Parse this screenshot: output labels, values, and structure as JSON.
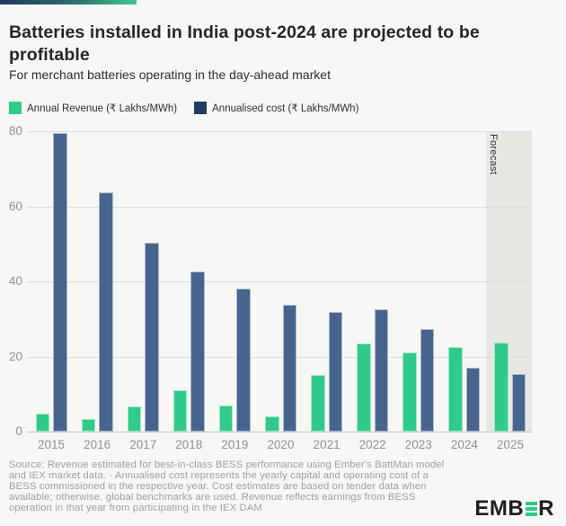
{
  "header": {
    "title": "Batteries installed in India post-2024 are projected to be profitable",
    "subtitle": "For merchant batteries operating in the day-ahead market"
  },
  "legend": [
    {
      "label": "Annual Revenue (₹ Lakhs/MWh)",
      "color": "#30cb8a"
    },
    {
      "label": "Annualised cost (₹ Lakhs/MWh)",
      "color": "#1f3c64"
    }
  ],
  "chart_data": {
    "type": "bar",
    "title": "Batteries installed in India post-2024 are projected to be profitable",
    "subtitle": "For merchant batteries operating in the day-ahead market",
    "categories": [
      "2015",
      "2016",
      "2017",
      "2018",
      "2019",
      "2020",
      "2021",
      "2022",
      "2023",
      "2024",
      "2025"
    ],
    "series": [
      {
        "name": "Annual Revenue (₹ Lakhs/MWh)",
        "color": "#30cb8a",
        "values": [
          4.8,
          3.4,
          6.7,
          11.0,
          7.0,
          4.1,
          15.2,
          23.5,
          21.1,
          22.5,
          23.7
        ]
      },
      {
        "name": "Annualised cost (₹ Lakhs/MWh)",
        "color": "#47648f",
        "values": [
          79.5,
          63.8,
          50.3,
          42.7,
          38.0,
          33.8,
          31.9,
          32.6,
          27.4,
          17.0,
          15.4
        ]
      }
    ],
    "xlabel": "",
    "ylabel": "",
    "ylim": [
      0,
      80
    ],
    "yticks": [
      0,
      20,
      40,
      60,
      80
    ],
    "grid": true,
    "legend_position": "top",
    "forecast_band": {
      "label": "Forecast",
      "from_category": "2025",
      "color": "#e7e7e4"
    }
  },
  "footer": {
    "source": "Source: Revenue estimated for best-in-class BESS performance using Ember's BattMan model and IEX market data. · Annualised cost represents the yearly capital and operating cost of a BESS commissioned in the respective year. Cost estimates are based on tender data when available; otherwise, global benchmarks are used. Revenue reflects earnings from BESS operation in that year from participating in the IEX DAM",
    "logo": {
      "part1": "EMB",
      "part2": "R",
      "bar_color": "#2fc98a",
      "text_color": "#1e1e1c"
    }
  }
}
